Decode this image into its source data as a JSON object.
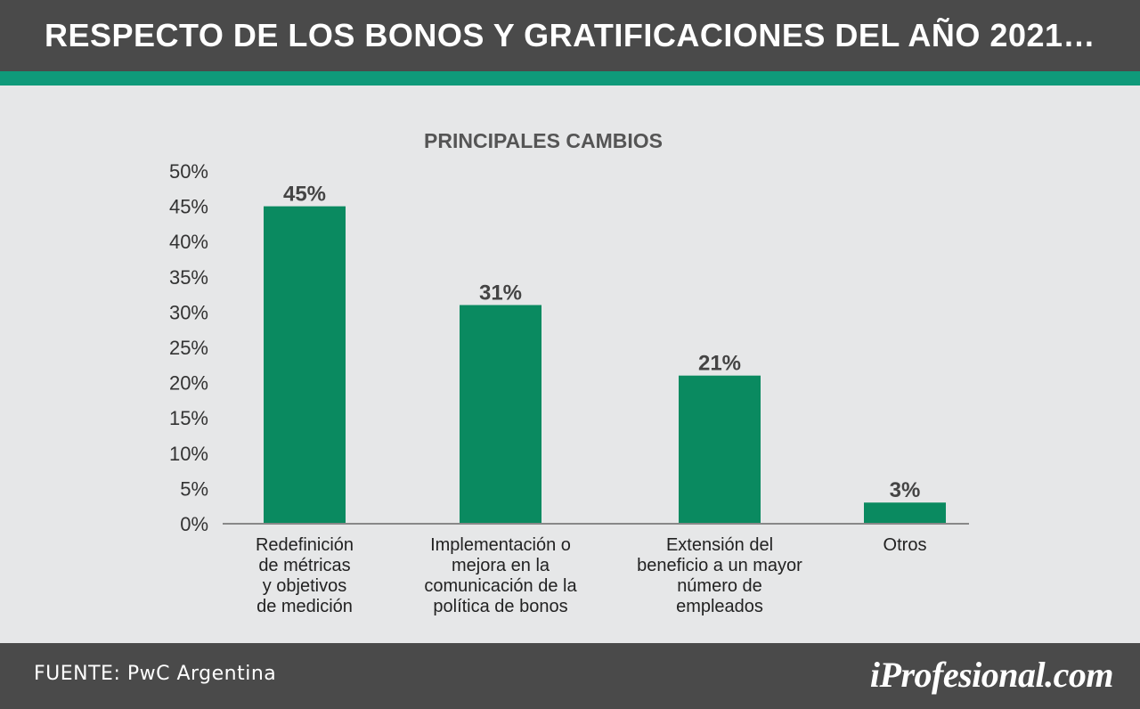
{
  "header": {
    "title": "RESPECTO DE LOS BONOS Y GRATIFICACIONES DEL AÑO 2021…"
  },
  "colors": {
    "header_bg": "#4a4a4a",
    "accent": "#0f9a7a",
    "bar": "#0a8a60",
    "background": "#e6e7e8"
  },
  "chart_data": {
    "type": "bar",
    "title": "PRINCIPALES CAMBIOS",
    "categories": [
      [
        "Redefinición",
        "de métricas",
        "y objetivos",
        "de medición"
      ],
      [
        "Implementación o",
        "mejora en la",
        "comunicación de la",
        "política de bonos"
      ],
      [
        "Extensión del",
        "beneficio a un mayor",
        "número de",
        "empleados"
      ],
      [
        "Otros"
      ]
    ],
    "values": [
      45,
      31,
      21,
      3
    ],
    "data_labels": [
      "45%",
      "31%",
      "21%",
      "3%"
    ],
    "yticks": [
      "0%",
      "5%",
      "10%",
      "15%",
      "20%",
      "25%",
      "30%",
      "35%",
      "40%",
      "45%",
      "50%"
    ],
    "ylim": [
      0,
      50
    ],
    "grid": false,
    "xlabel": "",
    "ylabel": ""
  },
  "footer": {
    "source": "FUENTE: PwC Argentina",
    "brand": "iProfesional.com"
  }
}
